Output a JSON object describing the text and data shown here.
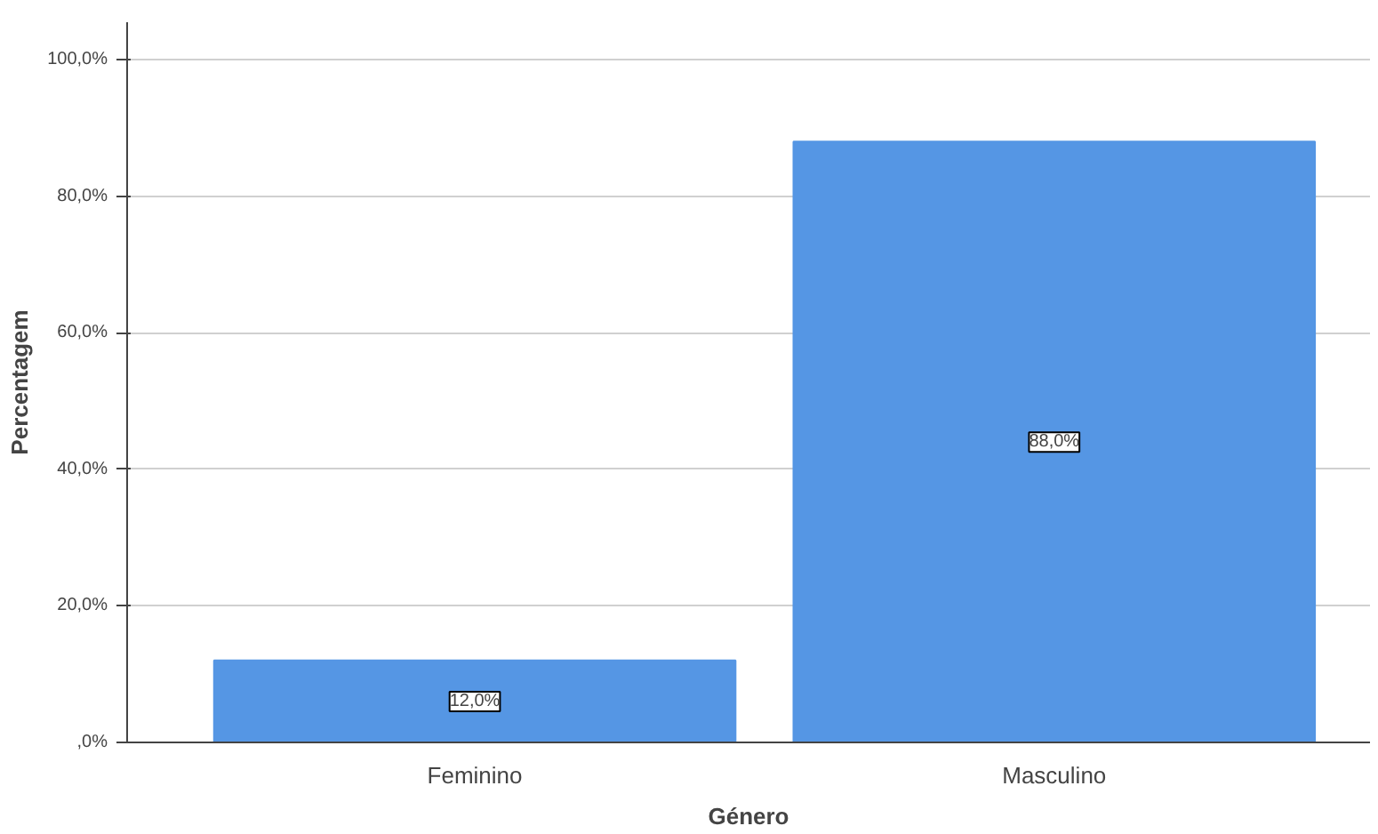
{
  "chart_data": {
    "type": "bar",
    "xlabel": "Género",
    "ylabel": "Percentagem",
    "categories": [
      "Feminino",
      "Masculino"
    ],
    "values": [
      12.0,
      88.0
    ],
    "value_labels": [
      "12,0%",
      "88,0%"
    ],
    "color": "#5596e4",
    "ylim": [
      0,
      105.5
    ],
    "yticks": [
      {
        "value": 0,
        "label": ",0%"
      },
      {
        "value": 20,
        "label": "20,0%"
      },
      {
        "value": 40,
        "label": "40,0%"
      },
      {
        "value": 60,
        "label": "60,0%"
      },
      {
        "value": 80,
        "label": "80,0%"
      },
      {
        "value": 100,
        "label": "100,0%"
      }
    ],
    "grid": "y"
  }
}
